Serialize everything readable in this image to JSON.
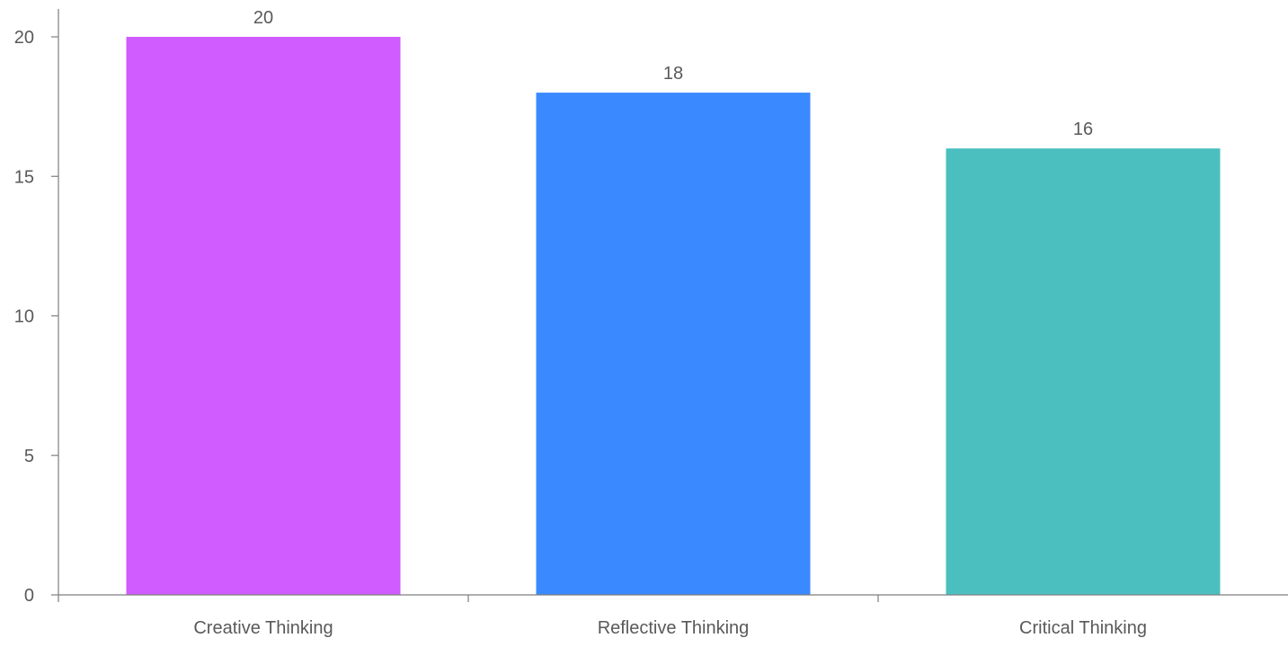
{
  "chart_data": {
    "type": "bar",
    "title": "",
    "xlabel": "",
    "ylabel": "",
    "categories": [
      "Creative Thinking",
      "Reflective Thinking",
      "Critical Thinking"
    ],
    "values": [
      20,
      18,
      16
    ],
    "colors": [
      "#d05bff",
      "#3a89ff",
      "#4bbfbf"
    ],
    "ylim": [
      0,
      20
    ],
    "yticks": [
      0,
      5,
      10,
      15,
      20
    ],
    "data_labels": [
      "20",
      "18",
      "16"
    ],
    "grid": false,
    "legend": "none"
  }
}
